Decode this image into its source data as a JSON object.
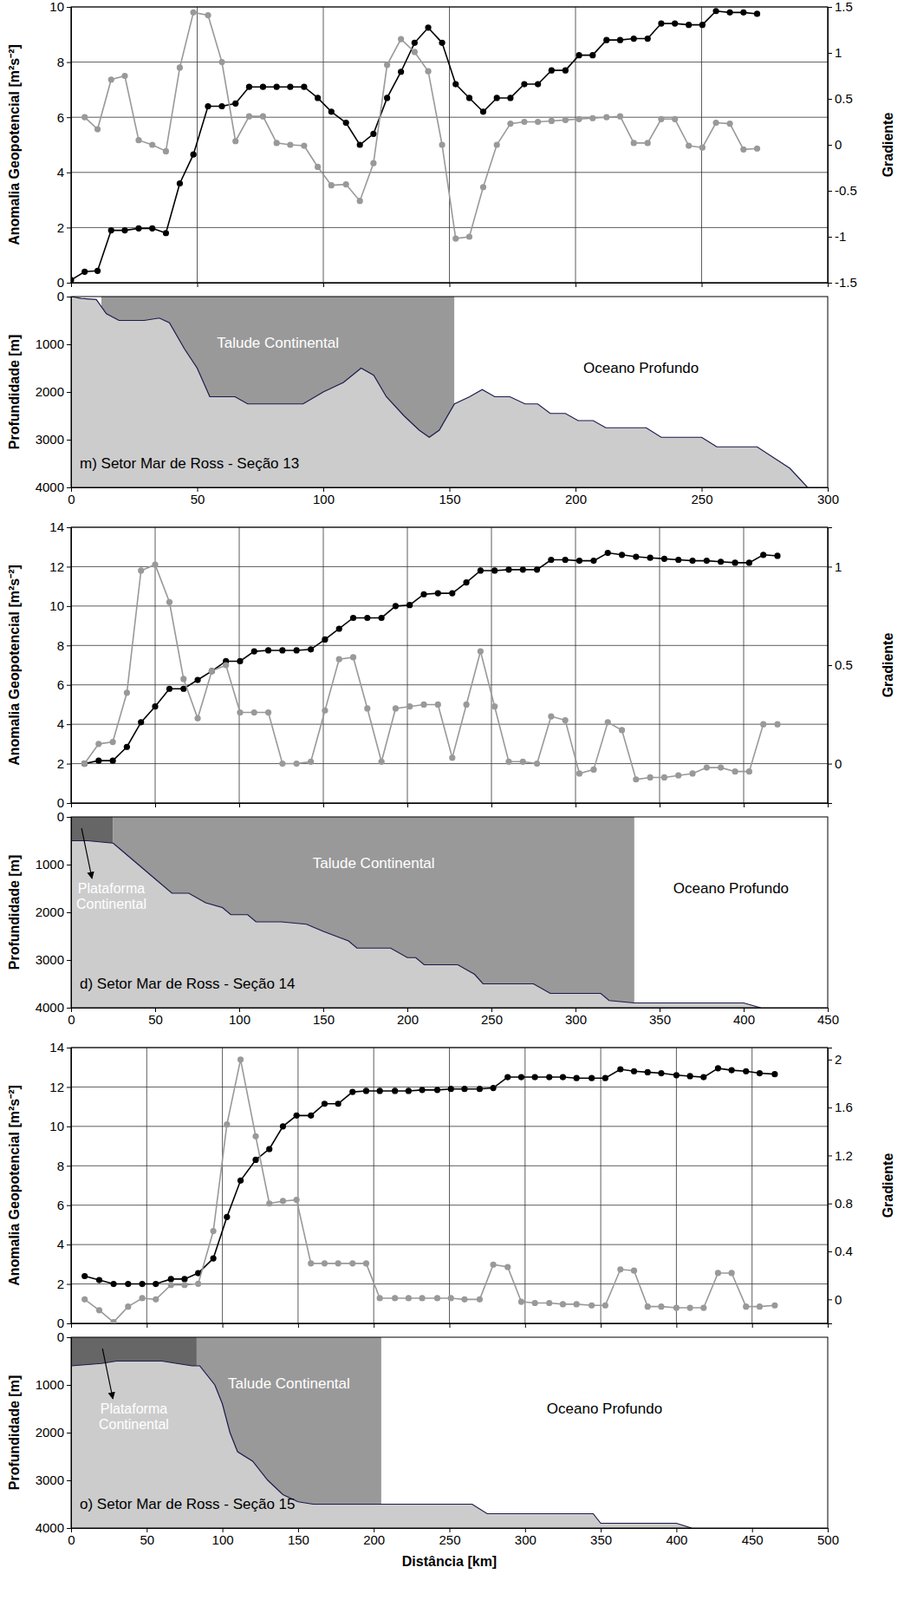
{
  "chart_data": [
    {
      "type": "line",
      "ylabel": "Anomalia Geopotencial [m²s⁻²]",
      "y2label": "Gradiente",
      "grid": true,
      "tick_labels": "y",
      "xlim": [
        0,
        300
      ],
      "xticks": [
        0,
        50,
        100,
        150,
        200,
        250,
        300
      ],
      "ylim": [
        0,
        10
      ],
      "yticks": [
        0,
        2,
        4,
        6,
        8,
        10
      ],
      "y2lim": [
        -1.5,
        1.5
      ],
      "y2ticks": [
        -1.5,
        -1,
        -0.5,
        0,
        0.5,
        1,
        1.5
      ],
      "x": [
        0,
        5.4,
        10.5,
        15.9,
        21.3,
        26.8,
        32.2,
        37.6,
        43.1,
        48.5,
        54.3,
        59.8,
        65.2,
        70.6,
        76.1,
        81.5,
        86.9,
        92.4,
        97.8,
        103.2,
        109,
        114.5,
        119.9,
        125.3,
        130.8,
        136.2,
        141.6,
        147.1,
        152.5,
        157.9,
        163.4,
        168.8,
        174.2,
        179.7,
        185.1,
        190.5,
        196,
        201.4,
        206.8,
        212.3,
        217.7,
        223.1,
        228.6,
        234,
        239.4,
        244.9,
        250.3,
        255.7,
        261.2,
        266.6,
        272
      ],
      "series": [
        {
          "color": "#000000",
          "marker": "circle",
          "values": [
            0.1,
            0.4,
            0.43,
            1.9,
            1.9,
            1.97,
            1.97,
            1.8,
            3.6,
            4.65,
            6.4,
            6.4,
            6.5,
            7.1,
            7.1,
            7.1,
            7.1,
            7.1,
            6.7,
            6.2,
            5.8,
            5.0,
            5.4,
            6.7,
            7.65,
            8.7,
            9.25,
            8.7,
            7.2,
            6.7,
            6.2,
            6.7,
            6.7,
            7.2,
            7.2,
            7.7,
            7.7,
            8.25,
            8.25,
            8.8,
            8.8,
            8.85,
            8.85,
            9.4,
            9.4,
            9.35,
            9.35,
            9.85,
            9.8,
            9.8,
            9.75
          ]
        },
        {
          "color": "#999999",
          "marker": "circle",
          "axis": "y2",
          "values": [
            null,
            0.3,
            0.17,
            0.71,
            0.75,
            0.05,
            0.0,
            -0.07,
            0.84,
            1.44,
            1.41,
            0.9,
            0.04,
            0.31,
            0.31,
            0.02,
            0.0,
            -0.01,
            -0.24,
            -0.44,
            -0.43,
            -0.61,
            -0.2,
            0.87,
            1.15,
            1.01,
            0.8,
            0.0,
            -1.02,
            -1.0,
            -0.46,
            0.0,
            0.23,
            0.25,
            0.25,
            0.26,
            0.27,
            0.28,
            0.29,
            0.3,
            0.31,
            0.02,
            0.02,
            0.28,
            0.28,
            -0.01,
            -0.03,
            0.24,
            0.23,
            -0.05,
            -0.04
          ]
        }
      ]
    },
    {
      "type": "area",
      "title": "m) Setor Mar de Ross - Seção 13",
      "ylabel": "Profundidade [m]",
      "color": "#cccccc",
      "xlim": [
        0,
        300
      ],
      "xticks": [
        0,
        50,
        100,
        150,
        200,
        250,
        300
      ],
      "ylim": [
        4000,
        0
      ],
      "yticks": [
        0,
        1000,
        2000,
        3000,
        4000
      ],
      "x": [
        0,
        4,
        10,
        14,
        19,
        29,
        35,
        39,
        45,
        50,
        55,
        65,
        70,
        92,
        100,
        108,
        115,
        120,
        125,
        132,
        138,
        142,
        146,
        152,
        158,
        163,
        168,
        174,
        180,
        185,
        190,
        196,
        201,
        207,
        212,
        228,
        234,
        250,
        256,
        272,
        285,
        292
      ],
      "values": [
        0,
        40,
        60,
        360,
        500,
        500,
        450,
        550,
        1100,
        1500,
        2100,
        2100,
        2250,
        2250,
        2000,
        1800,
        1500,
        1650,
        2100,
        2500,
        2800,
        2950,
        2800,
        2250,
        2100,
        1950,
        2100,
        2100,
        2250,
        2250,
        2450,
        2450,
        2600,
        2600,
        2750,
        2750,
        2950,
        2950,
        3150,
        3150,
        3600,
        4000
      ],
      "regions": [
        {
          "name": "Talude Continental",
          "x0": 12,
          "x1": 152,
          "color": "#999999"
        },
        {
          "name": "Oceano Profundo",
          "x0": 152,
          "x1": 300,
          "color": "#ffffff"
        }
      ]
    },
    {
      "type": "line",
      "ylabel": "Anomalia Geopotencial [m²s⁻²]",
      "y2label": "Gradiente",
      "grid": true,
      "tick_labels": "y",
      "xlim": [
        0,
        450
      ],
      "xticks": [
        0,
        50,
        100,
        150,
        200,
        250,
        300,
        350,
        400,
        450
      ],
      "ylim": [
        0,
        14
      ],
      "yticks": [
        0,
        2,
        4,
        6,
        8,
        10,
        12,
        14
      ],
      "y2lim": [
        -0.2,
        1.2
      ],
      "y2ticks": [
        0,
        0.5,
        1
      ],
      "x": [
        8,
        16.4,
        24.8,
        33.2,
        41.6,
        50,
        58.5,
        66.9,
        75.3,
        83.7,
        92.1,
        100.5,
        108.9,
        117.3,
        125.7,
        134.1,
        142.6,
        151,
        159.4,
        167.8,
        176.2,
        184.6,
        193,
        201.4,
        209.8,
        218.2,
        226.7,
        235.1,
        243.5,
        251.9,
        260.3,
        268.7,
        277.1,
        285.5,
        293.9,
        302.3,
        310.8,
        319.2,
        327.6,
        336,
        344.4,
        352.8,
        361.2,
        369.6,
        378,
        386.4,
        394.9,
        403.3,
        411.7,
        420.1
      ],
      "series": [
        {
          "color": "#000000",
          "marker": "circle",
          "values": [
            2.0,
            2.15,
            2.15,
            2.85,
            4.1,
            4.9,
            5.8,
            5.8,
            6.25,
            6.7,
            7.2,
            7.2,
            7.7,
            7.75,
            7.75,
            7.75,
            7.8,
            8.3,
            8.85,
            9.4,
            9.4,
            9.4,
            10.0,
            10.05,
            10.6,
            10.65,
            10.65,
            11.2,
            11.8,
            11.8,
            11.85,
            11.85,
            11.85,
            12.35,
            12.35,
            12.3,
            12.3,
            12.7,
            12.6,
            12.5,
            12.45,
            12.4,
            12.35,
            12.3,
            12.3,
            12.25,
            12.2,
            12.2,
            12.6,
            12.55
          ]
        },
        {
          "color": "#999999",
          "marker": "circle",
          "axis": "y2",
          "values": [
            0.0,
            0.1,
            0.11,
            0.36,
            0.98,
            1.01,
            0.82,
            0.43,
            0.23,
            0.47,
            0.5,
            0.26,
            0.26,
            0.26,
            0.0,
            0.0,
            0.01,
            0.27,
            0.53,
            0.54,
            0.28,
            0.01,
            0.28,
            0.29,
            0.3,
            0.3,
            0.03,
            0.3,
            0.57,
            0.29,
            0.01,
            0.01,
            0.0,
            0.24,
            0.22,
            -0.05,
            -0.03,
            0.21,
            0.17,
            -0.08,
            -0.07,
            -0.07,
            -0.06,
            -0.05,
            -0.02,
            -0.02,
            -0.04,
            -0.04,
            0.2,
            0.2
          ]
        }
      ]
    },
    {
      "type": "area",
      "title": "d) Setor Mar de Ross - Seção 14",
      "ylabel": "Profundidade [m]",
      "color": "#cccccc",
      "xlim": [
        0,
        450
      ],
      "xticks": [
        0,
        50,
        100,
        150,
        200,
        250,
        300,
        350,
        400,
        450
      ],
      "ylim": [
        4000,
        0
      ],
      "yticks": [
        0,
        1000,
        2000,
        3000,
        4000
      ],
      "x": [
        0,
        10,
        25,
        30,
        40,
        50,
        60,
        70,
        80,
        90,
        95,
        105,
        110,
        125,
        140,
        150,
        165,
        170,
        190,
        200,
        205,
        210,
        230,
        240,
        245,
        275,
        285,
        315,
        320,
        335,
        400,
        410
      ],
      "values": [
        500,
        500,
        550,
        700,
        1000,
        1300,
        1600,
        1600,
        1800,
        1900,
        2050,
        2050,
        2200,
        2200,
        2250,
        2400,
        2600,
        2750,
        2750,
        2950,
        2950,
        3100,
        3100,
        3300,
        3500,
        3500,
        3700,
        3700,
        3850,
        3900,
        3900,
        4000
      ],
      "regions": [
        {
          "name": "Plataforma Continental",
          "x0": 0,
          "x1": 25,
          "color": "#666666"
        },
        {
          "name": "Talude Continental",
          "x0": 25,
          "x1": 335,
          "color": "#999999"
        },
        {
          "name": "Oceano Profundo",
          "x0": 335,
          "x1": 450,
          "color": "#ffffff"
        }
      ]
    },
    {
      "type": "line",
      "ylabel": "Anomalia Geopotencial [m²s⁻²]",
      "y2label": "Gradiente",
      "grid": true,
      "tick_labels": "y",
      "xlim": [
        0,
        500
      ],
      "xticks": [
        0,
        50,
        100,
        150,
        200,
        250,
        300,
        350,
        400,
        450,
        500
      ],
      "ylim": [
        0,
        14
      ],
      "yticks": [
        0,
        2,
        4,
        6,
        8,
        10,
        12,
        14
      ],
      "y2lim": [
        -0.2,
        2.1
      ],
      "y2ticks": [
        0,
        0.4,
        0.8,
        1.2,
        1.6,
        2
      ],
      "x": [
        9,
        18.6,
        28.1,
        37.7,
        47,
        56,
        66,
        75,
        84,
        94,
        103,
        112,
        122,
        131,
        140,
        149,
        158.5,
        167.5,
        176.5,
        186,
        195,
        204,
        214,
        223,
        232,
        242,
        251,
        260,
        270,
        279,
        288.5,
        297.5,
        306.5,
        316,
        325,
        334,
        344,
        353,
        363,
        372,
        381,
        390,
        400,
        409,
        418,
        427.5,
        436.5,
        446,
        455,
        465
      ],
      "series": [
        {
          "color": "#000000",
          "marker": "circle",
          "values": [
            2.4,
            2.2,
            2.0,
            2.0,
            2.0,
            2.0,
            2.25,
            2.25,
            2.55,
            3.3,
            5.4,
            7.25,
            8.3,
            8.85,
            10.0,
            10.55,
            10.55,
            11.15,
            11.15,
            11.75,
            11.8,
            11.8,
            11.8,
            11.8,
            11.85,
            11.85,
            11.9,
            11.9,
            11.9,
            11.95,
            12.5,
            12.5,
            12.5,
            12.5,
            12.5,
            12.45,
            12.45,
            12.45,
            12.9,
            12.8,
            12.75,
            12.7,
            12.6,
            12.55,
            12.5,
            12.95,
            12.85,
            12.8,
            12.7,
            12.65
          ]
        },
        {
          "color": "#999999",
          "marker": "circle",
          "axis": "y2",
          "values": [
            0.0,
            -0.09,
            -0.19,
            -0.06,
            0.01,
            0.0,
            0.12,
            0.12,
            0.13,
            0.57,
            1.46,
            2.0,
            1.36,
            0.8,
            0.82,
            0.83,
            0.3,
            0.3,
            0.3,
            0.3,
            0.3,
            0.01,
            0.01,
            0.01,
            0.01,
            0.01,
            0.01,
            0.0,
            0.0,
            0.29,
            0.27,
            -0.02,
            -0.03,
            -0.03,
            -0.04,
            -0.04,
            -0.05,
            -0.05,
            0.25,
            0.24,
            -0.06,
            -0.06,
            -0.07,
            -0.07,
            -0.07,
            0.22,
            0.22,
            -0.06,
            -0.06,
            -0.05
          ]
        }
      ]
    },
    {
      "type": "area",
      "title": "o) Setor Mar de Ross - Seção 15",
      "ylabel": "Profundidade [m]",
      "xlabel": "Distância [km]",
      "color": "#cccccc",
      "xlim": [
        0,
        500
      ],
      "xticks": [
        0,
        50,
        100,
        150,
        200,
        250,
        300,
        350,
        400,
        450,
        500
      ],
      "ylim": [
        4000,
        0
      ],
      "yticks": [
        0,
        1000,
        2000,
        3000,
        4000
      ],
      "x": [
        0,
        20,
        30,
        60,
        70,
        80,
        85,
        95,
        100,
        105,
        110,
        120,
        130,
        140,
        150,
        160,
        205,
        265,
        275,
        345,
        350,
        400,
        410
      ],
      "values": [
        600,
        550,
        500,
        500,
        550,
        600,
        600,
        1000,
        1400,
        2000,
        2400,
        2600,
        3000,
        3300,
        3450,
        3500,
        3500,
        3500,
        3700,
        3700,
        3900,
        3900,
        4000
      ],
      "regions": [
        {
          "name": "Plataforma Continental",
          "x0": 0,
          "x1": 83,
          "color": "#666666"
        },
        {
          "name": "Talude Continental",
          "x0": 83,
          "x1": 205,
          "color": "#999999"
        },
        {
          "name": "Oceano Profundo",
          "x0": 205,
          "x1": 500,
          "color": "#ffffff"
        }
      ]
    }
  ]
}
